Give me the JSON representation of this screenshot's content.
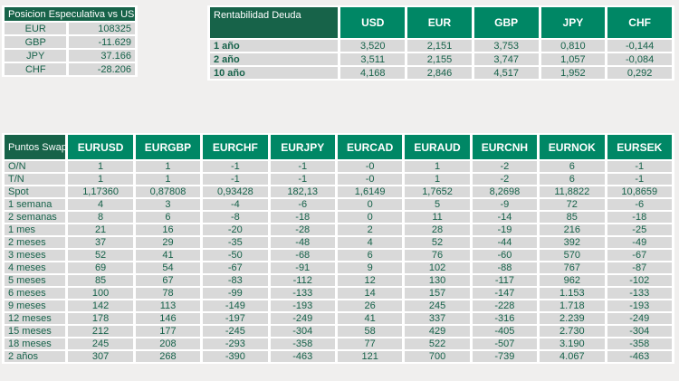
{
  "colors": {
    "header_dark_green": "#176349",
    "header_medium_green": "#008765",
    "cell_background": "#d9d9d9",
    "text_green": "#17624a",
    "page_background": "#f0efee",
    "grid_gap_white": "#ffffff"
  },
  "speculative_table": {
    "title": "Posicion Especulativa vs USD",
    "rows": [
      {
        "label": "EUR",
        "value": "108325"
      },
      {
        "label": "GBP",
        "value": "-11.629"
      },
      {
        "label": "JPY",
        "value": "37.166"
      },
      {
        "label": "CHF",
        "value": "-28.206"
      }
    ]
  },
  "debt_table": {
    "title": "Rentabilidad Deuda",
    "columns": [
      "USD",
      "EUR",
      "GBP",
      "JPY",
      "CHF"
    ],
    "rows": [
      {
        "label": "1 año",
        "values": [
          "3,520",
          "2,151",
          "3,753",
          "0,810",
          "-0,144"
        ]
      },
      {
        "label": "2 año",
        "values": [
          "3,511",
          "2,155",
          "3,747",
          "1,057",
          "-0,084"
        ]
      },
      {
        "label": "10 año",
        "values": [
          "4,168",
          "2,846",
          "4,517",
          "1,952",
          "0,292"
        ]
      }
    ]
  },
  "swap_table": {
    "title": "Puntos Swap",
    "columns": [
      "EURUSD",
      "EURGBP",
      "EURCHF",
      "EURJPY",
      "EURCAD",
      "EURAUD",
      "EURCNH",
      "EURNOK",
      "EURSEK"
    ],
    "rows": [
      {
        "label": "O/N",
        "values": [
          "1",
          "1",
          "-1",
          "-1",
          "-0",
          "1",
          "-2",
          "6",
          "-1"
        ]
      },
      {
        "label": "T/N",
        "values": [
          "1",
          "1",
          "-1",
          "-1",
          "-0",
          "1",
          "-2",
          "6",
          "-1"
        ]
      },
      {
        "label": "Spot",
        "values": [
          "1,17360",
          "0,87808",
          "0,93428",
          "182,13",
          "1,6149",
          "1,7652",
          "8,2698",
          "11,8822",
          "10,8659"
        ]
      },
      {
        "label": "1 semana",
        "values": [
          "4",
          "3",
          "-4",
          "-6",
          "0",
          "5",
          "-9",
          "72",
          "-6"
        ]
      },
      {
        "label": "2 semanas",
        "values": [
          "8",
          "6",
          "-8",
          "-18",
          "0",
          "11",
          "-14",
          "85",
          "-18"
        ]
      },
      {
        "label": "1 mes",
        "values": [
          "21",
          "16",
          "-20",
          "-28",
          "2",
          "28",
          "-19",
          "216",
          "-25"
        ]
      },
      {
        "label": "2 meses",
        "values": [
          "37",
          "29",
          "-35",
          "-48",
          "4",
          "52",
          "-44",
          "392",
          "-49"
        ]
      },
      {
        "label": "3 meses",
        "values": [
          "52",
          "41",
          "-50",
          "-68",
          "6",
          "76",
          "-60",
          "570",
          "-67"
        ]
      },
      {
        "label": "4 meses",
        "values": [
          "69",
          "54",
          "-67",
          "-91",
          "9",
          "102",
          "-88",
          "767",
          "-87"
        ]
      },
      {
        "label": "5 meses",
        "values": [
          "85",
          "67",
          "-83",
          "-112",
          "12",
          "130",
          "-117",
          "962",
          "-102"
        ]
      },
      {
        "label": "6 meses",
        "values": [
          "100",
          "78",
          "-99",
          "-133",
          "14",
          "157",
          "-147",
          "1.153",
          "-133"
        ]
      },
      {
        "label": "9 meses",
        "values": [
          "142",
          "113",
          "-149",
          "-193",
          "26",
          "245",
          "-228",
          "1.718",
          "-193"
        ]
      },
      {
        "label": "12 meses",
        "values": [
          "178",
          "146",
          "-197",
          "-249",
          "41",
          "337",
          "-316",
          "2.239",
          "-249"
        ]
      },
      {
        "label": "15 meses",
        "values": [
          "212",
          "177",
          "-245",
          "-304",
          "58",
          "429",
          "-405",
          "2.730",
          "-304"
        ]
      },
      {
        "label": "18 meses",
        "values": [
          "245",
          "208",
          "-293",
          "-358",
          "77",
          "522",
          "-507",
          "3.190",
          "-358"
        ]
      },
      {
        "label": "2 años",
        "values": [
          "307",
          "268",
          "-390",
          "-463",
          "121",
          "700",
          "-739",
          "4.067",
          "-463"
        ]
      }
    ]
  }
}
